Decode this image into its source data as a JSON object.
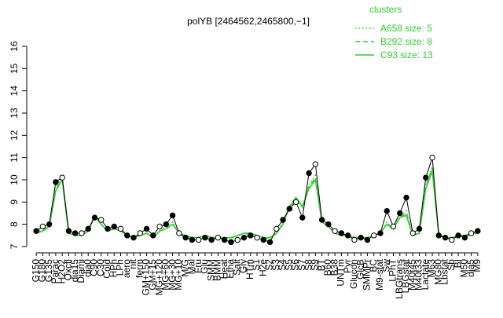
{
  "chart_data": {
    "type": "line",
    "title": "polYB [2464562,2465800,−1]",
    "legend_title": "clusters",
    "legend": "top-right",
    "categories": [
      "G150",
      "G180",
      "G135",
      "Parac",
      "H2O2",
      "Oxctl",
      "dia15",
      "Diami",
      "dia0",
      "C90",
      "C30",
      "Cold",
      "HPh",
      "LPh",
      "aero",
      "nit",
      "ferm",
      "GM+150",
      "GM+15",
      "MG+120",
      "MG+60",
      "MG+30",
      "MG+10",
      "M/G",
      "Mal",
      "Fru",
      "Glu",
      "SMM",
      "BMM",
      "Heat",
      "Etha",
      "Salt",
      "Gly",
      "HTm",
      "S1",
      "H2e",
      "S2",
      "S3",
      "S4",
      "S5",
      "S6",
      "S7",
      "S8",
      "S9",
      "BT",
      "B60",
      "B38",
      "UNTm",
      "Pyr",
      "Glucon",
      "GlcB",
      "SMMPr",
      "BC",
      "M9-stat",
      "Sw",
      "LPhT",
      "LBGtrans",
      "LBGstat",
      "M40t45",
      "M40t33",
      "Lactate",
      "M63",
      "MG80",
      "Lbstat",
      "Sb",
      "BI",
      "M50",
      "dia5",
      "M9"
    ],
    "gene_values": [
      7.7,
      7.9,
      8.0,
      9.9,
      10.1,
      7.7,
      7.6,
      7.6,
      7.8,
      8.3,
      8.2,
      7.8,
      7.9,
      7.8,
      7.5,
      7.4,
      7.6,
      7.8,
      7.5,
      7.9,
      8.0,
      8.4,
      7.6,
      7.4,
      7.3,
      7.3,
      7.4,
      7.3,
      7.4,
      7.3,
      7.2,
      7.3,
      7.4,
      7.5,
      7.4,
      7.3,
      7.2,
      7.8,
      8.2,
      8.7,
      9.0,
      8.3,
      10.3,
      10.7,
      8.2,
      8.0,
      7.7,
      7.6,
      7.5,
      7.3,
      7.4,
      7.3,
      7.5,
      7.6,
      8.6,
      7.9,
      8.5,
      9.2,
      7.6,
      7.8,
      10.1,
      11.0,
      7.5,
      7.4,
      7.3,
      7.5,
      7.4,
      7.6,
      7.7
    ],
    "series": [
      {
        "name": "A658 size: 5",
        "color": "#33cc33",
        "dash": "dotted",
        "values": [
          7.6,
          7.8,
          7.9,
          9.7,
          10.1,
          7.6,
          7.5,
          7.5,
          7.7,
          8.3,
          8.0,
          7.7,
          7.8,
          7.7,
          7.5,
          7.4,
          7.5,
          7.6,
          7.4,
          7.7,
          7.9,
          8.1,
          7.6,
          7.4,
          7.4,
          7.4,
          7.5,
          7.4,
          7.4,
          7.4,
          7.3,
          7.5,
          7.5,
          7.6,
          7.5,
          7.4,
          7.3,
          7.6,
          8.1,
          8.7,
          9.1,
          8.7,
          9.8,
          10.2,
          8.1,
          7.9,
          7.6,
          7.5,
          7.5,
          7.4,
          7.4,
          7.4,
          7.5,
          7.6,
          8.1,
          7.8,
          8.3,
          8.6,
          7.5,
          7.6,
          9.8,
          10.6,
          7.5,
          7.4,
          7.4,
          7.5,
          7.5,
          7.6,
          7.6
        ]
      },
      {
        "name": "B292 size: 8",
        "color": "#33cc33",
        "dash": "dashed",
        "values": [
          7.6,
          7.7,
          7.9,
          9.6,
          10.0,
          7.6,
          7.5,
          7.5,
          7.7,
          8.4,
          8.0,
          7.7,
          7.8,
          7.7,
          7.5,
          7.4,
          7.5,
          7.6,
          7.4,
          7.7,
          7.8,
          8.0,
          7.6,
          7.5,
          7.4,
          7.4,
          7.5,
          7.4,
          7.4,
          7.4,
          7.4,
          7.5,
          7.6,
          7.6,
          7.5,
          7.4,
          7.4,
          7.6,
          8.0,
          8.8,
          9.2,
          8.8,
          9.7,
          10.1,
          8.1,
          7.9,
          7.6,
          7.5,
          7.5,
          7.4,
          7.4,
          7.4,
          7.5,
          7.6,
          8.0,
          7.8,
          8.3,
          8.5,
          7.5,
          7.6,
          9.7,
          10.5,
          7.5,
          7.4,
          7.4,
          7.5,
          7.5,
          7.6,
          7.6
        ]
      },
      {
        "name": "C93 size: 13",
        "color": "#33cc33",
        "dash": "solid",
        "values": [
          7.6,
          7.7,
          7.9,
          9.5,
          10.0,
          7.6,
          7.5,
          7.5,
          7.7,
          8.4,
          8.0,
          7.7,
          7.8,
          7.7,
          7.5,
          7.4,
          7.5,
          7.6,
          7.4,
          7.7,
          7.8,
          8.0,
          7.6,
          7.5,
          7.4,
          7.4,
          7.5,
          7.4,
          7.4,
          7.4,
          7.4,
          7.5,
          7.6,
          7.6,
          7.5,
          7.4,
          7.4,
          7.6,
          8.0,
          8.8,
          9.2,
          8.8,
          9.6,
          10.0,
          8.1,
          7.9,
          7.6,
          7.5,
          7.5,
          7.4,
          7.4,
          7.4,
          7.5,
          7.6,
          8.0,
          7.8,
          8.3,
          8.4,
          7.5,
          7.6,
          9.6,
          10.4,
          7.5,
          7.4,
          7.4,
          7.5,
          7.5,
          7.6,
          7.6
        ]
      }
    ],
    "ylim": [
      7,
      16
    ],
    "yticks": [
      7,
      8,
      9,
      10,
      11,
      12,
      13,
      14,
      15,
      16
    ]
  }
}
